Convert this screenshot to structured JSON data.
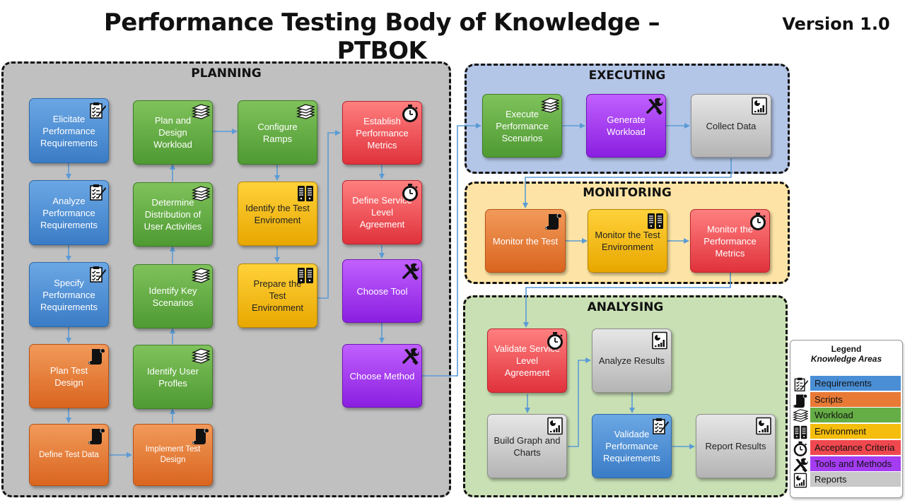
{
  "title": "Performance Testing Body of Knowledge – PTBOK",
  "version": "Version 1.0",
  "panels": {
    "planning": "PLANNING",
    "executing": "EXECUTING",
    "monitoring": "MONITORING",
    "analysing": "ANALYSING"
  },
  "colors": {
    "requirements": "#4a8fd6",
    "scripts": "#e87a36",
    "workload": "#65ad45",
    "environment": "#f5bd0d",
    "acceptance_criteria": "#f0484f",
    "tools_and_methods": "#a43cf2",
    "reports": "#c8c8c8",
    "planning_bg": "#c0c0c0",
    "executing_bg": "#b4c6e7",
    "monitoring_bg": "#fde4a6",
    "analysing_bg": "#c9e0b4"
  },
  "boxes": {
    "elicitate": {
      "label": "Elicitate\nPerformance\nRequirements",
      "icon": "checklist-icon"
    },
    "analyze_req": {
      "label": "Analyze\nPerformance\nRequirements",
      "icon": "checklist-icon"
    },
    "specify": {
      "label": "Specify\nPerformance\nRequirements",
      "icon": "checklist-icon"
    },
    "plan_test_design": {
      "label": "Plan Test Design",
      "icon": "scroll-icon"
    },
    "define_test_data": {
      "label": "Define Test Data",
      "icon": "scroll-icon"
    },
    "plan_design_workload": {
      "label": "Plan and Design\nWorkload",
      "icon": "stack-icon"
    },
    "determine_distribution": {
      "label": "Determine\nDistribution of\nUser Activities",
      "icon": "stack-icon"
    },
    "identify_key_scenarios": {
      "label": "Identify Key\nScenarios",
      "icon": "stack-icon"
    },
    "identify_user_profiles": {
      "label": "Identify User\nProfles",
      "icon": "stack-icon"
    },
    "implement_test_design": {
      "label": "Implement Test\nDesign",
      "icon": "scroll-icon"
    },
    "configure_ramps": {
      "label": "Configure Ramps",
      "icon": "stack-icon"
    },
    "identify_test_env": {
      "label": "Identify the Test\nEnviroment",
      "icon": "server-icon"
    },
    "prepare_test_env": {
      "label": "Prepare the Test\nEnvironment",
      "icon": "server-icon"
    },
    "establish_metrics": {
      "label": "Establish\nPerformance\nMetrics",
      "icon": "stopwatch-icon"
    },
    "define_sla": {
      "label": "Define Service\nLevel Agreement",
      "icon": "stopwatch-icon"
    },
    "choose_tool": {
      "label": "Choose Tool",
      "icon": "tools-icon"
    },
    "choose_method": {
      "label": "Choose Method",
      "icon": "tools-icon"
    },
    "execute_scenarios": {
      "label": "Execute\nPerformance\nScenarios",
      "icon": "stack-icon"
    },
    "generate_workload": {
      "label": "Generate\nWorkload",
      "icon": "tools-icon"
    },
    "collect_data": {
      "label": "Collect Data",
      "icon": "report-icon"
    },
    "monitor_test": {
      "label": "Monitor the Test",
      "icon": "scroll-icon"
    },
    "monitor_env": {
      "label": "Monitor the Test\nEnvironment",
      "icon": "server-icon"
    },
    "monitor_metrics": {
      "label": "Monitor the\nPerformance\nMetrics",
      "icon": "stopwatch-icon"
    },
    "validate_sla": {
      "label": "Validate Service\nLevel Agreement",
      "icon": "stopwatch-icon"
    },
    "analyze_results": {
      "label": "Analyze Results",
      "icon": "report-icon"
    },
    "build_graph": {
      "label": "Build Graph and\nCharts",
      "icon": "report-icon"
    },
    "validade_req": {
      "label": "Validade\nPerformance\nRequirements",
      "icon": "checklist-icon"
    },
    "report_results": {
      "label": "Report Results",
      "icon": "report-icon"
    }
  },
  "legend": {
    "title": "Legend",
    "subtitle": "Knowledge Areas",
    "items": [
      {
        "label": "Requirements",
        "icon": "checklist-icon"
      },
      {
        "label": "Scripts",
        "icon": "scroll-icon"
      },
      {
        "label": "Workload",
        "icon": "stack-icon"
      },
      {
        "label": "Environment",
        "icon": "server-icon"
      },
      {
        "label": "Acceptance Criteria",
        "icon": "stopwatch-icon"
      },
      {
        "label": "Tools and Methods",
        "icon": "tools-icon"
      },
      {
        "label": "Reports",
        "icon": "report-icon"
      }
    ]
  }
}
